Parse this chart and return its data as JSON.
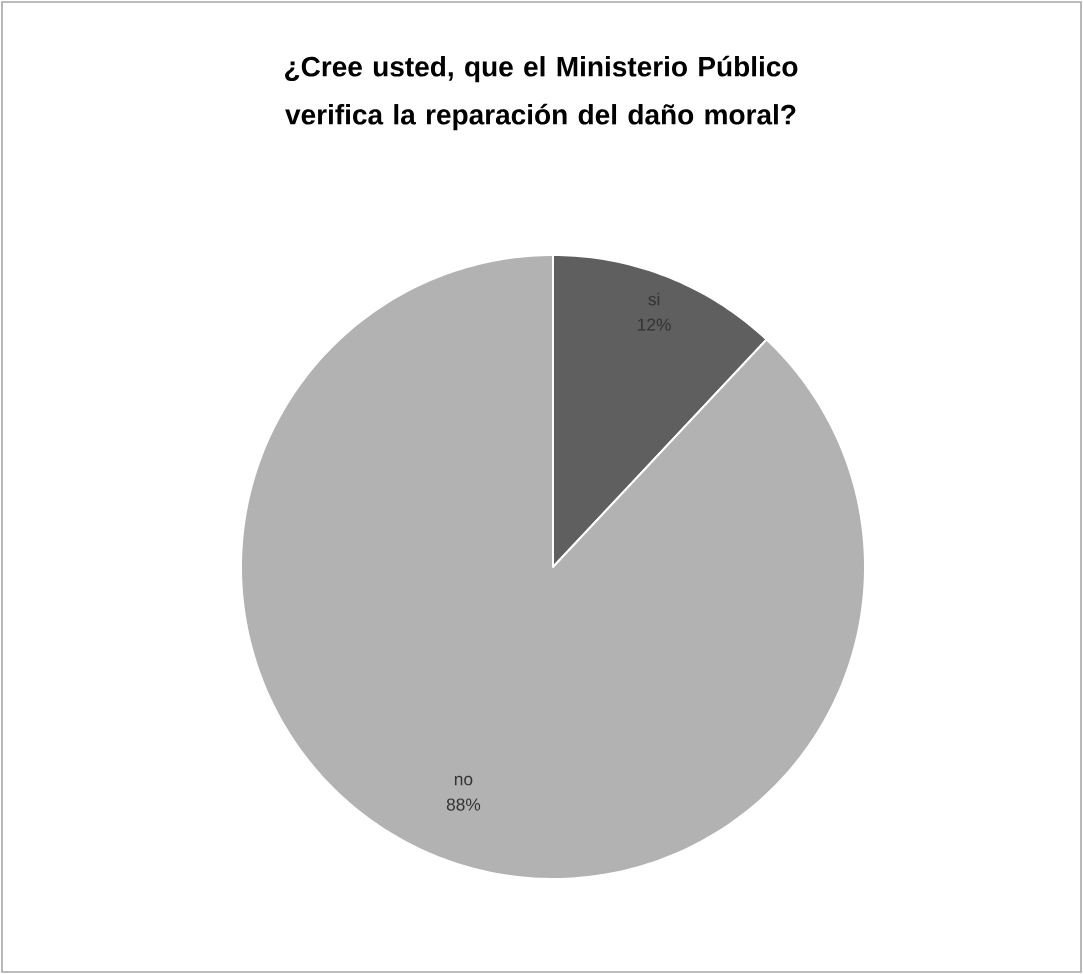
{
  "chart_data": {
    "type": "pie",
    "title": "¿Cree usted, que el Ministerio Público verifica la reparación del daño moral?",
    "categories": [
      "si",
      "no"
    ],
    "values": [
      12,
      88
    ],
    "value_labels": [
      "12%",
      "88%"
    ],
    "colors": [
      "#5f5f5f",
      "#b2b2b2"
    ]
  }
}
